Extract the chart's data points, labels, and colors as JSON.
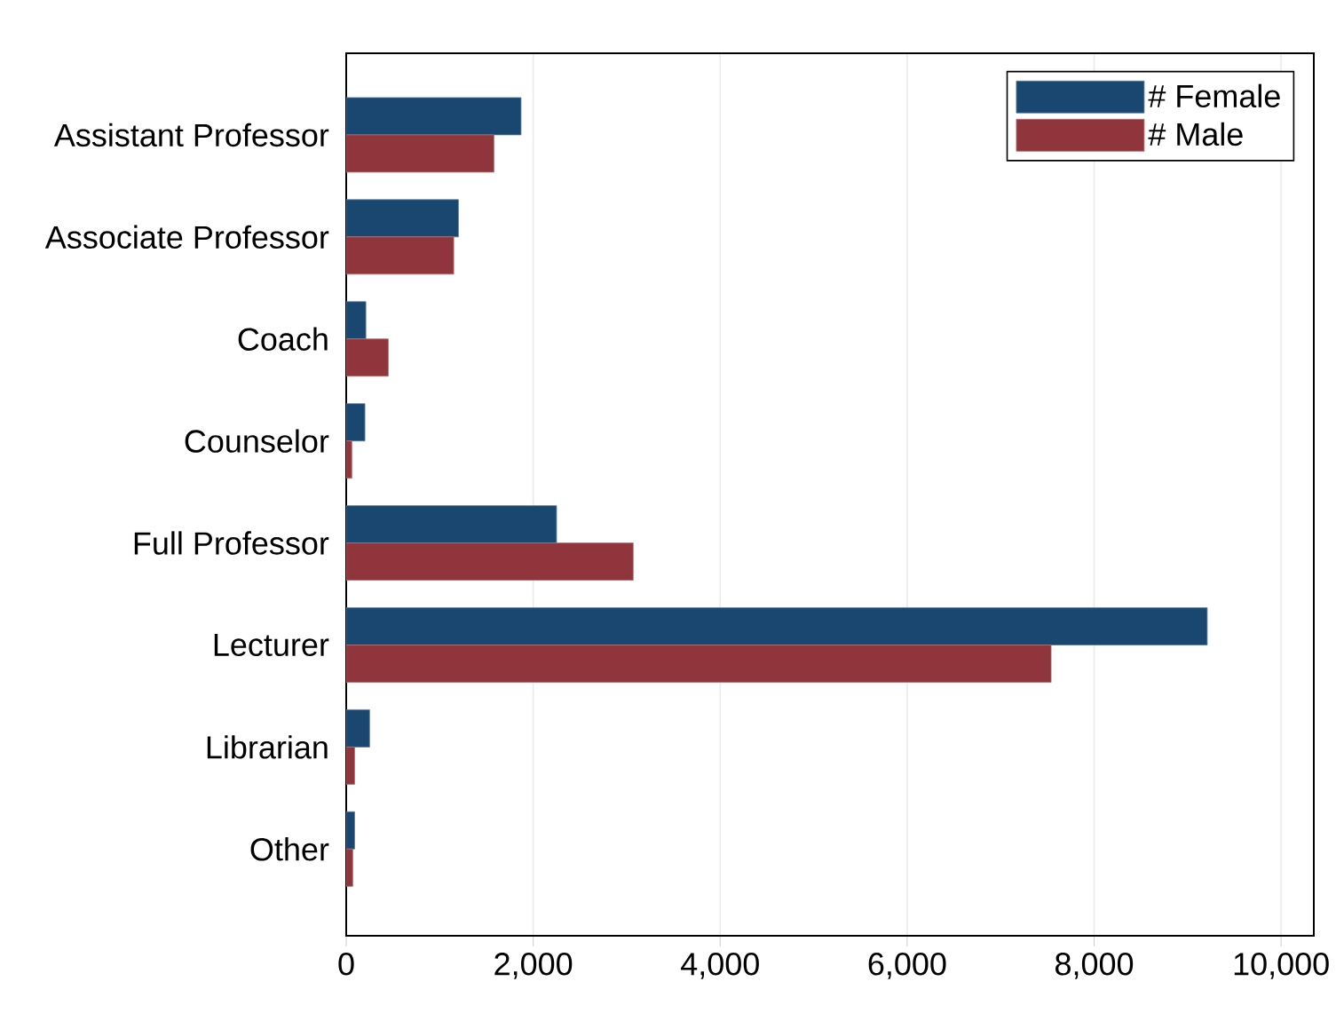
{
  "chart_data": {
    "type": "bar",
    "orientation": "horizontal",
    "categories": [
      "Assistant Professor",
      "Associate Professor",
      "Coach",
      "Counselor",
      "Full Professor",
      "Lecturer",
      "Librarian",
      "Other"
    ],
    "series": [
      {
        "name": "# Female",
        "color": "#1a476f",
        "values": [
          1870,
          1200,
          210,
          200,
          2250,
          9210,
          250,
          90
        ]
      },
      {
        "name": "# Male",
        "color": "#90353b",
        "values": [
          1580,
          1150,
          450,
          60,
          3070,
          7540,
          90,
          70
        ]
      }
    ],
    "xlim": [
      0,
      10350
    ],
    "xticks": [
      {
        "value": 0,
        "label": "0"
      },
      {
        "value": 2000,
        "label": "2,000"
      },
      {
        "value": 4000,
        "label": "4,000"
      },
      {
        "value": 6000,
        "label": "6,000"
      },
      {
        "value": 8000,
        "label": "8,000"
      },
      {
        "value": 10000,
        "label": "10,000"
      }
    ],
    "grid": "x",
    "legend": "top right"
  }
}
